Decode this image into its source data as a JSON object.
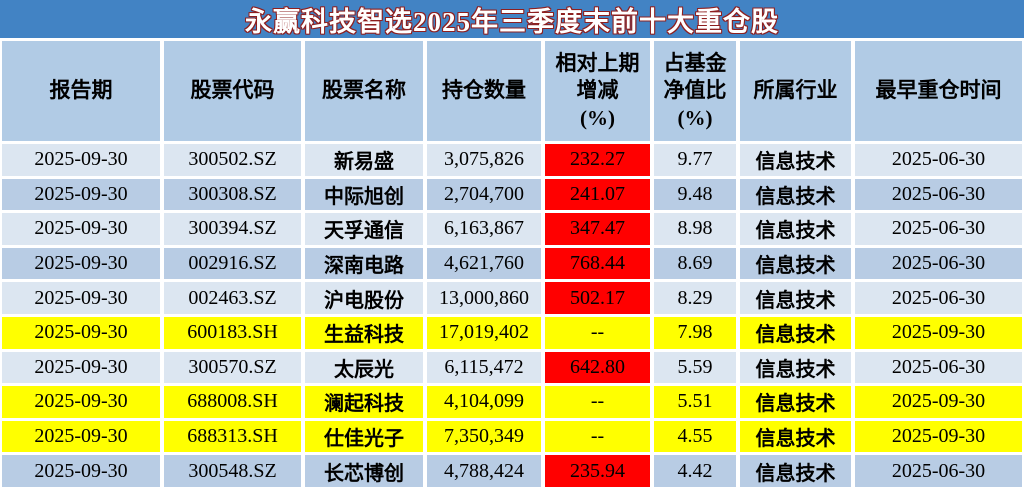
{
  "title": "永赢科技智选2025年三季度末前十大重仓股",
  "colors": {
    "title_bar": "#4283c4",
    "title_text": "#ffffff",
    "title_outline": "#8e1f1f",
    "header_bg": "#b1cbe5",
    "row_light": "#dce6f1",
    "row_dark": "#b8cce4",
    "row_highlight_yellow": "#ffff00",
    "change_highlight_red": "#ff0000",
    "text": "#000000"
  },
  "table": {
    "headers": [
      "报告期",
      "股票代码",
      "股票名称",
      "持仓数量",
      "相对上期\n增减\n(%)",
      "占基金\n净值比\n(%)",
      "所属行业",
      "最早重仓时间"
    ],
    "rows": [
      {
        "report_date": "2025-09-30",
        "stock_code": "300502.SZ",
        "stock_name": "新易盛",
        "shares": "3,075,826",
        "change_pct": "232.27",
        "nav_pct": "9.77",
        "industry": "信息技术",
        "first_heavy_date": "2025-06-30",
        "row_color": "light",
        "change_highlight": true
      },
      {
        "report_date": "2025-09-30",
        "stock_code": "300308.SZ",
        "stock_name": "中际旭创",
        "shares": "2,704,700",
        "change_pct": "241.07",
        "nav_pct": "9.48",
        "industry": "信息技术",
        "first_heavy_date": "2025-06-30",
        "row_color": "dark",
        "change_highlight": true
      },
      {
        "report_date": "2025-09-30",
        "stock_code": "300394.SZ",
        "stock_name": "天孚通信",
        "shares": "6,163,867",
        "change_pct": "347.47",
        "nav_pct": "8.98",
        "industry": "信息技术",
        "first_heavy_date": "2025-06-30",
        "row_color": "light",
        "change_highlight": true
      },
      {
        "report_date": "2025-09-30",
        "stock_code": "002916.SZ",
        "stock_name": "深南电路",
        "shares": "4,621,760",
        "change_pct": "768.44",
        "nav_pct": "8.69",
        "industry": "信息技术",
        "first_heavy_date": "2025-06-30",
        "row_color": "dark",
        "change_highlight": true
      },
      {
        "report_date": "2025-09-30",
        "stock_code": "002463.SZ",
        "stock_name": "沪电股份",
        "shares": "13,000,860",
        "change_pct": "502.17",
        "nav_pct": "8.29",
        "industry": "信息技术",
        "first_heavy_date": "2025-06-30",
        "row_color": "light",
        "change_highlight": true
      },
      {
        "report_date": "2025-09-30",
        "stock_code": "600183.SH",
        "stock_name": "生益科技",
        "shares": "17,019,402",
        "change_pct": "--",
        "nav_pct": "7.98",
        "industry": "信息技术",
        "first_heavy_date": "2025-09-30",
        "row_color": "yellow",
        "change_highlight": false
      },
      {
        "report_date": "2025-09-30",
        "stock_code": "300570.SZ",
        "stock_name": "太辰光",
        "shares": "6,115,472",
        "change_pct": "642.80",
        "nav_pct": "5.59",
        "industry": "信息技术",
        "first_heavy_date": "2025-06-30",
        "row_color": "light",
        "change_highlight": true
      },
      {
        "report_date": "2025-09-30",
        "stock_code": "688008.SH",
        "stock_name": "澜起科技",
        "shares": "4,104,099",
        "change_pct": "--",
        "nav_pct": "5.51",
        "industry": "信息技术",
        "first_heavy_date": "2025-09-30",
        "row_color": "yellow",
        "change_highlight": false
      },
      {
        "report_date": "2025-09-30",
        "stock_code": "688313.SH",
        "stock_name": "仕佳光子",
        "shares": "7,350,349",
        "change_pct": "--",
        "nav_pct": "4.55",
        "industry": "信息技术",
        "first_heavy_date": "2025-09-30",
        "row_color": "yellow",
        "change_highlight": false
      },
      {
        "report_date": "2025-09-30",
        "stock_code": "300548.SZ",
        "stock_name": "长芯博创",
        "shares": "4,788,424",
        "change_pct": "235.94",
        "nav_pct": "4.42",
        "industry": "信息技术",
        "first_heavy_date": "2025-06-30",
        "row_color": "dark",
        "change_highlight": true
      }
    ]
  },
  "chart_data": {
    "type": "table",
    "title": "永赢科技智选2025年三季度末前十大重仓股",
    "columns": [
      "报告期",
      "股票代码",
      "股票名称",
      "持仓数量",
      "相对上期增减(%)",
      "占基金净值比(%)",
      "所属行业",
      "最早重仓时间"
    ],
    "rows": [
      [
        "2025-09-30",
        "300502.SZ",
        "新易盛",
        "3,075,826",
        "232.27",
        "9.77",
        "信息技术",
        "2025-06-30"
      ],
      [
        "2025-09-30",
        "300308.SZ",
        "中际旭创",
        "2,704,700",
        "241.07",
        "9.48",
        "信息技术",
        "2025-06-30"
      ],
      [
        "2025-09-30",
        "300394.SZ",
        "天孚通信",
        "6,163,867",
        "347.47",
        "8.98",
        "信息技术",
        "2025-06-30"
      ],
      [
        "2025-09-30",
        "002916.SZ",
        "深南电路",
        "4,621,760",
        "768.44",
        "8.69",
        "信息技术",
        "2025-06-30"
      ],
      [
        "2025-09-30",
        "002463.SZ",
        "沪电股份",
        "13,000,860",
        "502.17",
        "8.29",
        "信息技术",
        "2025-06-30"
      ],
      [
        "2025-09-30",
        "600183.SH",
        "生益科技",
        "17,019,402",
        "--",
        "7.98",
        "信息技术",
        "2025-09-30"
      ],
      [
        "2025-09-30",
        "300570.SZ",
        "太辰光",
        "6,115,472",
        "642.80",
        "5.59",
        "信息技术",
        "2025-06-30"
      ],
      [
        "2025-09-30",
        "688008.SH",
        "澜起科技",
        "4,104,099",
        "--",
        "5.51",
        "信息技术",
        "2025-09-30"
      ],
      [
        "2025-09-30",
        "688313.SH",
        "仕佳光子",
        "7,350,349",
        "--",
        "4.55",
        "信息技术",
        "2025-09-30"
      ],
      [
        "2025-09-30",
        "300548.SZ",
        "长芯博创",
        "4,788,424",
        "235.94",
        "4.42",
        "信息技术",
        "2025-06-30"
      ]
    ],
    "layout_hints": {
      "yellow_highlighted_rows_1based": [
        6,
        8,
        9
      ],
      "red_highlighted_change_rows_1based": [
        1,
        2,
        3,
        4,
        5,
        7,
        10
      ],
      "alternating_row_colors": [
        "#dce6f1",
        "#b8cce4"
      ]
    }
  }
}
